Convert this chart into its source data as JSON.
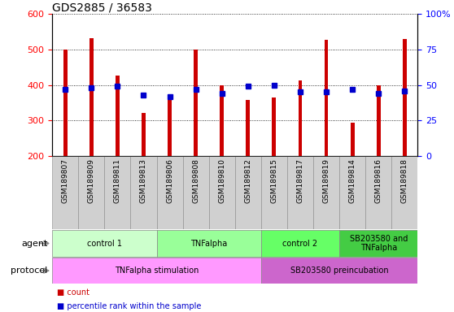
{
  "title": "GDS2885 / 36583",
  "samples": [
    "GSM189807",
    "GSM189809",
    "GSM189811",
    "GSM189813",
    "GSM189806",
    "GSM189808",
    "GSM189810",
    "GSM189812",
    "GSM189815",
    "GSM189817",
    "GSM189819",
    "GSM189814",
    "GSM189816",
    "GSM189818"
  ],
  "counts": [
    500,
    533,
    427,
    322,
    370,
    500,
    400,
    358,
    365,
    413,
    528,
    293,
    400,
    530
  ],
  "percentile_ranks": [
    47,
    48,
    49,
    43,
    42,
    47,
    44,
    49,
    50,
    45,
    45,
    47,
    44,
    46
  ],
  "ymin": 200,
  "ymax": 600,
  "yticks": [
    200,
    300,
    400,
    500,
    600
  ],
  "y2min": 0,
  "y2max": 100,
  "y2ticks": [
    0,
    25,
    50,
    75,
    100
  ],
  "y2ticklabels": [
    "0",
    "25",
    "50",
    "75",
    "100%"
  ],
  "bar_color": "#cc0000",
  "dot_color": "#0000cc",
  "agent_groups": [
    {
      "label": "control 1",
      "start": 0,
      "end": 3,
      "color": "#ccffcc"
    },
    {
      "label": "TNFalpha",
      "start": 4,
      "end": 7,
      "color": "#99ff99"
    },
    {
      "label": "control 2",
      "start": 8,
      "end": 10,
      "color": "#66ff66"
    },
    {
      "label": "SB203580 and\nTNFalpha",
      "start": 11,
      "end": 13,
      "color": "#44cc44"
    }
  ],
  "protocol_groups": [
    {
      "label": "TNFalpha stimulation",
      "start": 0,
      "end": 7,
      "color": "#ff99ff"
    },
    {
      "label": "SB203580 preincubation",
      "start": 8,
      "end": 13,
      "color": "#cc66cc"
    }
  ],
  "bar_width": 0.15,
  "dot_size": 4,
  "legend_count_color": "#cc0000",
  "legend_pct_color": "#0000cc"
}
